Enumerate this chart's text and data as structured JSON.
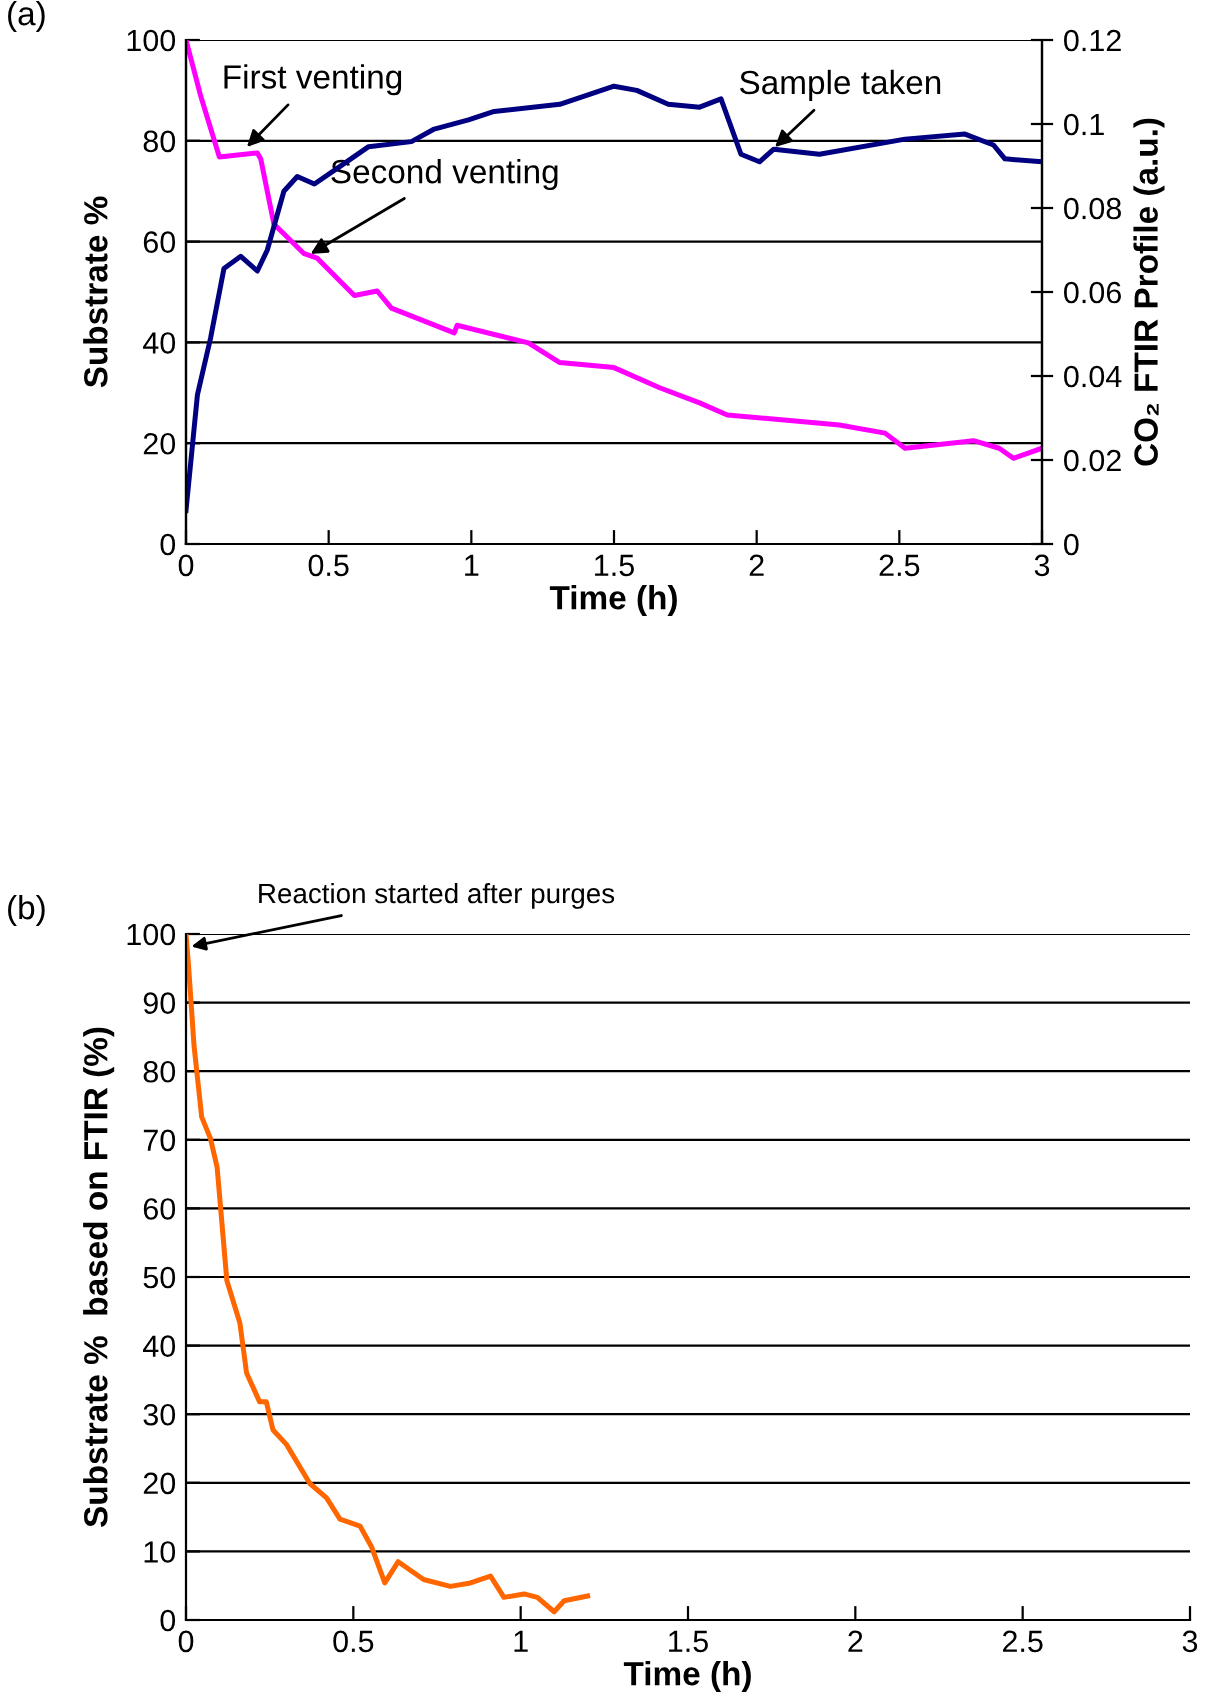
{
  "chart_data": [
    {
      "type": "line",
      "xlabel": "Time (h)",
      "ylabel": "Substrate %",
      "y2label": "CO₂ FTIR Profile (a.u.)",
      "xlim": [
        0,
        3
      ],
      "xticks": [
        0,
        0.5,
        1,
        1.5,
        2,
        2.5,
        3
      ],
      "ylim": [
        0,
        100
      ],
      "yticks": [
        0,
        20,
        40,
        60,
        80,
        100
      ],
      "y2lim": [
        0,
        0.12
      ],
      "y2ticks": [
        0,
        0.02,
        0.04,
        0.06,
        0.08,
        0.1,
        0.12
      ],
      "grid": "y",
      "series": [
        {
          "color": "#ff00ff",
          "x": [
            0,
            0.051,
            0.117,
            0.25,
            0.262,
            0.308,
            0.414,
            0.46,
            0.59,
            0.67,
            0.72,
            0.94,
            0.95,
            1.2,
            1.31,
            1.5,
            1.66,
            1.8,
            1.897,
            2.29,
            2.45,
            2.52,
            2.76,
            2.85,
            2.9,
            3
          ],
          "values": [
            100,
            89,
            76.8,
            77.6,
            76.4,
            63.5,
            57.6,
            56.7,
            49.3,
            50.2,
            46.8,
            41.9,
            43.4,
            39.9,
            36,
            35,
            31,
            28,
            25.6,
            23.6,
            22,
            19,
            20.5,
            19,
            17,
            19
          ]
        },
        {
          "color": "#000080",
          "axis": "y2",
          "x": [
            0,
            0.04,
            0.086,
            0.133,
            0.192,
            0.25,
            0.285,
            0.343,
            0.39,
            0.45,
            0.54,
            0.64,
            0.79,
            0.87,
            0.99,
            1.08,
            1.31,
            1.5,
            1.58,
            1.69,
            1.8,
            1.875,
            1.945,
            2.01,
            2.06,
            2.22,
            2.52,
            2.73,
            2.83,
            2.87,
            3
          ],
          "values": [
            0.008,
            0.0355,
            0.049,
            0.0656,
            0.0685,
            0.065,
            0.07,
            0.084,
            0.0875,
            0.0857,
            0.0899,
            0.0946,
            0.0958,
            0.0988,
            0.101,
            0.103,
            0.1047,
            0.109,
            0.108,
            0.1047,
            0.104,
            0.106,
            0.0928,
            0.091,
            0.094,
            0.0928,
            0.0964,
            0.0976,
            0.095,
            0.0917,
            0.091
          ]
        }
      ],
      "annotations": [
        "(a)",
        {
          "text": "First venting",
          "x": 0.2,
          "y": 78
        },
        {
          "text": "Second venting",
          "x": 0.42,
          "y": 57
        },
        {
          "text": "Sample taken",
          "x": 2.05,
          "y": 78
        }
      ]
    },
    {
      "type": "line",
      "xlabel": "Time (h)",
      "ylabel": "Substrate %  based on FTIR (%)",
      "xlim": [
        0,
        3
      ],
      "xticks": [
        0,
        0.5,
        1,
        1.5,
        2,
        2.5,
        3
      ],
      "ylim": [
        0,
        100
      ],
      "yticks": [
        0,
        10,
        20,
        30,
        40,
        50,
        60,
        70,
        80,
        90,
        100
      ],
      "grid": "y",
      "series": [
        {
          "color": "#ff6600",
          "x": [
            0,
            0.008,
            0.024,
            0.047,
            0.073,
            0.093,
            0.122,
            0.161,
            0.181,
            0.22,
            0.24,
            0.26,
            0.3,
            0.37,
            0.42,
            0.46,
            0.52,
            0.555,
            0.594,
            0.634,
            0.71,
            0.79,
            0.85,
            0.91,
            0.95,
            1.01,
            1.05,
            1.1,
            1.13,
            1.2
          ],
          "values": [
            100,
            95.1,
            83.7,
            73.3,
            70.2,
            66,
            49.5,
            43.3,
            36,
            31.8,
            31.8,
            27.7,
            25.6,
            19.9,
            17.8,
            14.7,
            13.7,
            10.6,
            5.4,
            8.5,
            5.9,
            4.9,
            5.4,
            6.4,
            3.3,
            3.8,
            3.3,
            1.2,
            2.8,
            3.5
          ]
        }
      ],
      "annotations": [
        "(b)",
        {
          "text": "Reaction started after purges",
          "x": 0,
          "y": 98
        }
      ]
    }
  ]
}
